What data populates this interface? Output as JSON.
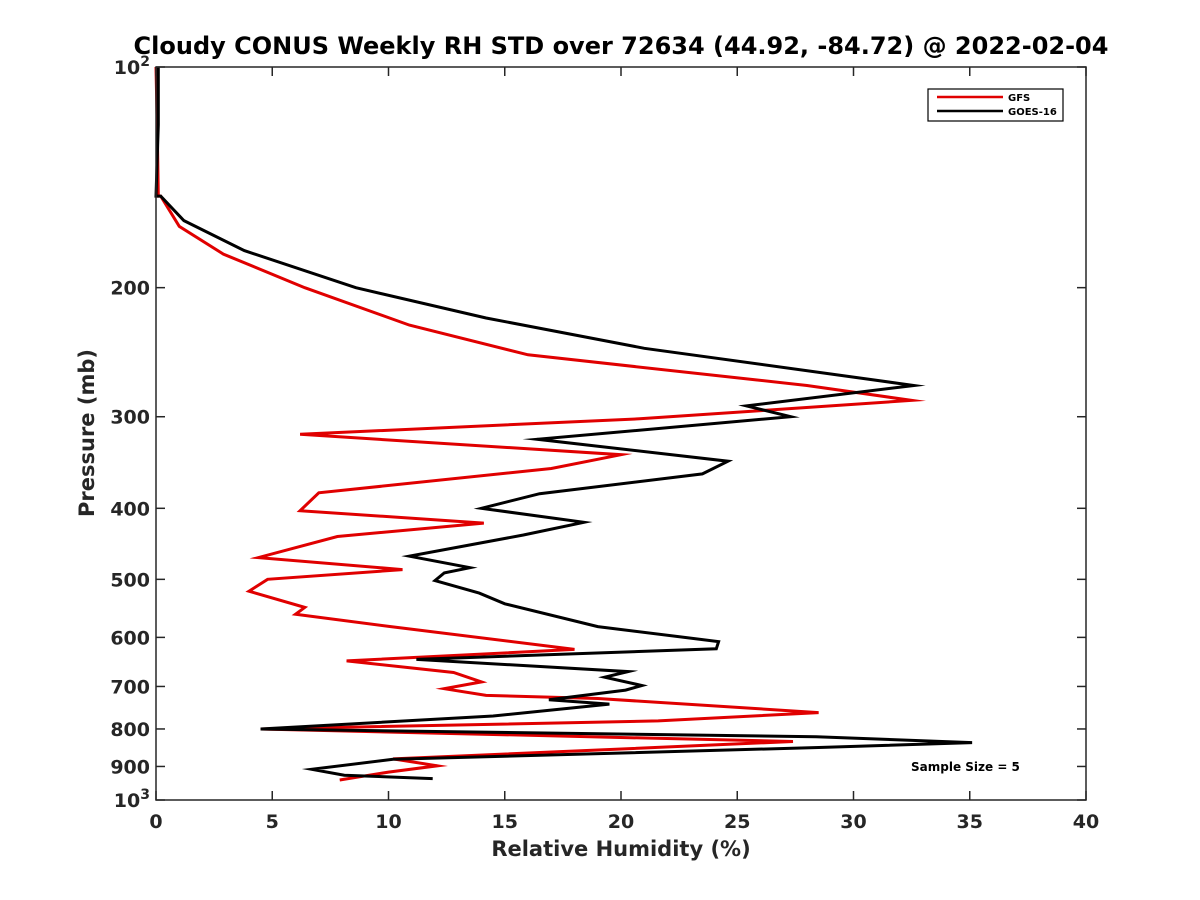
{
  "chart_data": {
    "type": "line",
    "title": "Cloudy CONUS Weekly RH STD over 72634 (44.92, -84.72) @ 2022-02-04",
    "xlabel": "Relative Humidity (%)",
    "ylabel": "Pressure (mb)",
    "xlim": [
      0,
      40
    ],
    "ylim": [
      100,
      1000
    ],
    "y_scale": "log",
    "y_reversed": true,
    "x_ticks": [
      "0",
      "5",
      "10",
      "15",
      "20",
      "25",
      "30",
      "35",
      "40"
    ],
    "y_ticks": [
      {
        "value": 100,
        "label": "10",
        "sup": "2"
      },
      {
        "value": 200,
        "label": "200",
        "sup": ""
      },
      {
        "value": 300,
        "label": "300",
        "sup": ""
      },
      {
        "value": 400,
        "label": "400",
        "sup": ""
      },
      {
        "value": 500,
        "label": "500",
        "sup": ""
      },
      {
        "value": 600,
        "label": "600",
        "sup": ""
      },
      {
        "value": 700,
        "label": "700",
        "sup": ""
      },
      {
        "value": 800,
        "label": "800",
        "sup": ""
      },
      {
        "value": 900,
        "label": "900",
        "sup": ""
      },
      {
        "value": 1000,
        "label": "10",
        "sup": "3"
      }
    ],
    "grid": false,
    "legend_position": "top-right",
    "annotation": "Sample Size = 5",
    "series": [
      {
        "name": "GFS",
        "color": "#e00000",
        "points": [
          [
            0.0,
            100
          ],
          [
            0.05,
            120
          ],
          [
            0.1,
            150
          ],
          [
            0.2,
            150
          ],
          [
            1.0,
            165
          ],
          [
            2.9,
            180
          ],
          [
            6.4,
            200
          ],
          [
            10.9,
            225
          ],
          [
            16.0,
            247
          ],
          [
            28.0,
            272
          ],
          [
            32.5,
            285
          ],
          [
            20.8,
            302
          ],
          [
            6.2,
            317
          ],
          [
            20.0,
            338
          ],
          [
            17.0,
            353
          ],
          [
            7.0,
            381
          ],
          [
            6.2,
            403
          ],
          [
            14.1,
            419
          ],
          [
            7.8,
            437
          ],
          [
            4.4,
            467
          ],
          [
            10.6,
            485
          ],
          [
            4.8,
            500
          ],
          [
            4.0,
            519
          ],
          [
            6.4,
            546
          ],
          [
            6.0,
            558
          ],
          [
            10.1,
            580
          ],
          [
            18.0,
            623
          ],
          [
            8.2,
            646
          ],
          [
            12.8,
            670
          ],
          [
            14.0,
            690
          ],
          [
            12.4,
            705
          ],
          [
            14.2,
            720
          ],
          [
            19.0,
            727
          ],
          [
            28.5,
            760
          ],
          [
            21.6,
            780
          ],
          [
            4.5,
            800
          ],
          [
            27.4,
            832
          ],
          [
            10.2,
            879
          ],
          [
            12.1,
            898
          ],
          [
            10.0,
            916
          ],
          [
            7.9,
            939
          ]
        ]
      },
      {
        "name": "GOES-16",
        "color": "#000000",
        "points": [
          [
            0.1,
            100
          ],
          [
            0.1,
            120
          ],
          [
            0.0,
            150
          ],
          [
            0.2,
            150
          ],
          [
            1.2,
            162
          ],
          [
            3.8,
            178
          ],
          [
            8.6,
            200
          ],
          [
            14.2,
            220
          ],
          [
            21.0,
            242
          ],
          [
            32.6,
            272
          ],
          [
            25.4,
            290
          ],
          [
            27.3,
            300
          ],
          [
            16.4,
            322
          ],
          [
            24.6,
            345
          ],
          [
            23.5,
            359
          ],
          [
            16.5,
            382
          ],
          [
            14.0,
            400
          ],
          [
            18.4,
            418
          ],
          [
            15.8,
            435
          ],
          [
            10.9,
            465
          ],
          [
            13.5,
            482
          ],
          [
            12.4,
            490
          ],
          [
            12.0,
            502
          ],
          [
            13.9,
            522
          ],
          [
            15.0,
            540
          ],
          [
            19.0,
            580
          ],
          [
            24.2,
            608
          ],
          [
            24.1,
            622
          ],
          [
            11.2,
            643
          ],
          [
            20.3,
            668
          ],
          [
            19.3,
            680
          ],
          [
            20.9,
            698
          ],
          [
            20.2,
            708
          ],
          [
            16.9,
            730
          ],
          [
            19.5,
            740
          ],
          [
            14.5,
            768
          ],
          [
            4.5,
            800
          ],
          [
            28.4,
            820
          ],
          [
            35.1,
            835
          ],
          [
            28.5,
            848
          ],
          [
            10.2,
            880
          ],
          [
            6.7,
            908
          ],
          [
            8.1,
            925
          ],
          [
            11.9,
            935
          ]
        ]
      }
    ]
  }
}
